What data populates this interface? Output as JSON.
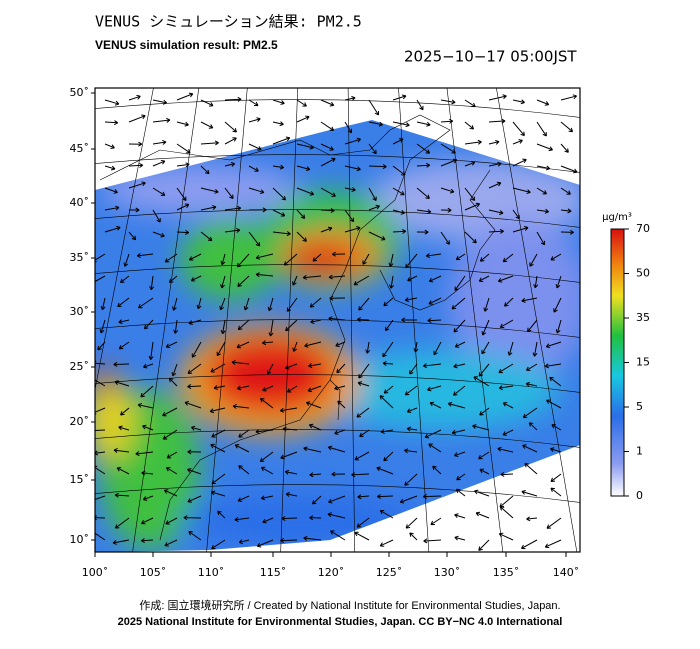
{
  "header": {
    "title_jp": "VENUS シミュレーション結果: PM2.5",
    "title_en": "VENUS simulation result: PM2.5",
    "datetime": "2025−10−17 05:00JST"
  },
  "map": {
    "lat_labels": [
      "50˚",
      "45˚",
      "40˚",
      "35˚",
      "30˚",
      "25˚",
      "20˚",
      "15˚",
      "10˚"
    ],
    "lon_labels": [
      "100˚",
      "105˚",
      "110˚",
      "115˚",
      "120˚",
      "125˚",
      "130˚",
      "135˚",
      "140˚"
    ]
  },
  "colorbar": {
    "unit": "μg/m³",
    "ticks": [
      "70",
      "50",
      "35",
      "15",
      "5",
      "1",
      "0"
    ]
  },
  "footer": {
    "line1": "作成: 国立環境研究所 / Created by National Institute for Environmental Studies, Japan.",
    "line2": "2025 National Institute for Environmental Studies, Japan. CC BY−NC 4.0 International"
  }
}
